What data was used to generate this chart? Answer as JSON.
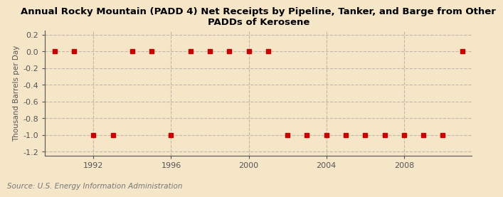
{
  "title": "Annual Rocky Mountain (PADD 4) Net Receipts by Pipeline, Tanker, and Barge from Other\nPADDs of Kerosene",
  "ylabel": "Thousand Barrels per Day",
  "source": "Source: U.S. Energy Information Administration",
  "background_color": "#f5e6c8",
  "plot_bg_color": "#f5e6c8",
  "ylim": [
    -1.25,
    0.25
  ],
  "yticks": [
    0.2,
    0.0,
    -0.2,
    -0.4,
    -0.6,
    -0.8,
    -1.0,
    -1.2
  ],
  "xlim": [
    1989.5,
    2011.5
  ],
  "xticks": [
    1992,
    1996,
    2000,
    2004,
    2008
  ],
  "years": [
    1990,
    1991,
    1992,
    1993,
    1994,
    1995,
    1996,
    1997,
    1998,
    1999,
    2000,
    2001,
    2002,
    2003,
    2004,
    2005,
    2006,
    2007,
    2008,
    2009,
    2010,
    2011
  ],
  "values": [
    0.0,
    0.0,
    -1.0,
    -1.0,
    0.0,
    0.0,
    -1.0,
    0.0,
    0.0,
    0.0,
    0.0,
    0.0,
    -1.0,
    -1.0,
    -1.0,
    -1.0,
    -1.0,
    -1.0,
    -1.0,
    -1.0,
    -1.0,
    0.0
  ],
  "marker_color": "#cc0000",
  "marker_size": 4,
  "grid_color": "#c0b8a8",
  "title_fontsize": 9.5,
  "axis_fontsize": 8,
  "ylabel_fontsize": 7.5,
  "source_fontsize": 7.5,
  "tick_color": "#555555",
  "spine_color": "#555555"
}
